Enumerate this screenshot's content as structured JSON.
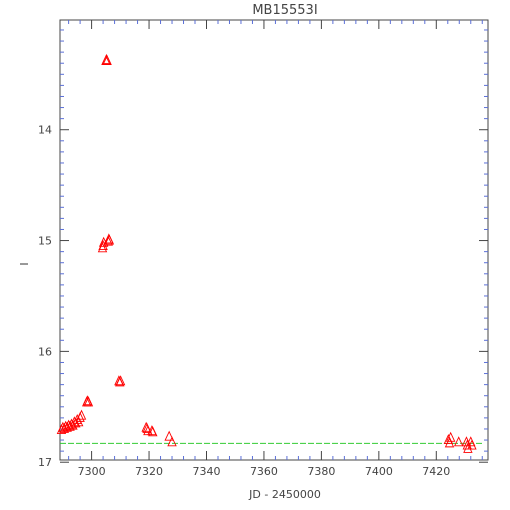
{
  "chart_data": {
    "type": "scatter",
    "title": "MB15553I",
    "xlabel": "JD - 2450000",
    "ylabel": "I",
    "xlim": [
      7289,
      7438
    ],
    "ylim": [
      16.98,
      13.01
    ],
    "y_reversed": true,
    "x_ticks": [
      7300,
      7320,
      7340,
      7360,
      7380,
      7400,
      7420
    ],
    "y_ticks": [
      14,
      15,
      16,
      17
    ],
    "frame_color": "#444444",
    "minor_tick_color": "#5b6fd6",
    "series": [
      {
        "marker": "open-triangle",
        "color": "#ff0000",
        "points": [
          [
            7289.5,
            16.71
          ],
          [
            7290.0,
            16.69
          ],
          [
            7290.5,
            16.7
          ],
          [
            7291.0,
            16.68
          ],
          [
            7291.5,
            16.69
          ],
          [
            7292.0,
            16.67
          ],
          [
            7292.5,
            16.68
          ],
          [
            7293.0,
            16.66
          ],
          [
            7293.5,
            16.67
          ],
          [
            7294.0,
            16.64
          ],
          [
            7294.5,
            16.65
          ],
          [
            7295.0,
            16.62
          ],
          [
            7295.5,
            16.64
          ],
          [
            7296.0,
            16.6
          ],
          [
            7296.5,
            16.58
          ],
          [
            7298.3,
            16.46
          ],
          [
            7298.6,
            16.45
          ],
          [
            7298.9,
            16.46
          ],
          [
            7303.8,
            15.07
          ],
          [
            7304.0,
            15.05
          ],
          [
            7304.2,
            15.02
          ],
          [
            7305.0,
            13.38
          ],
          [
            7305.2,
            13.37
          ],
          [
            7305.4,
            13.38
          ],
          [
            7305.8,
            15.01
          ],
          [
            7306.0,
            14.99
          ],
          [
            7306.2,
            15.0
          ],
          [
            7309.5,
            16.27
          ],
          [
            7309.8,
            16.28
          ],
          [
            7310.1,
            16.27
          ],
          [
            7319.0,
            16.69
          ],
          [
            7319.3,
            16.7
          ],
          [
            7319.6,
            16.72
          ],
          [
            7321.0,
            16.72
          ],
          [
            7321.3,
            16.73
          ],
          [
            7327.0,
            16.77
          ],
          [
            7328.0,
            16.82
          ],
          [
            7424.2,
            16.8
          ],
          [
            7424.6,
            16.83
          ],
          [
            7425.0,
            16.78
          ],
          [
            7427.8,
            16.82
          ],
          [
            7430.5,
            16.82
          ],
          [
            7430.8,
            16.85
          ],
          [
            7431.0,
            16.88
          ],
          [
            7432.0,
            16.82
          ],
          [
            7432.4,
            16.85
          ]
        ]
      },
      {
        "type": "line",
        "color": "#33cc33",
        "dashed": true,
        "points": [
          [
            7289,
            16.83
          ],
          [
            7436,
            16.83
          ]
        ]
      }
    ]
  }
}
